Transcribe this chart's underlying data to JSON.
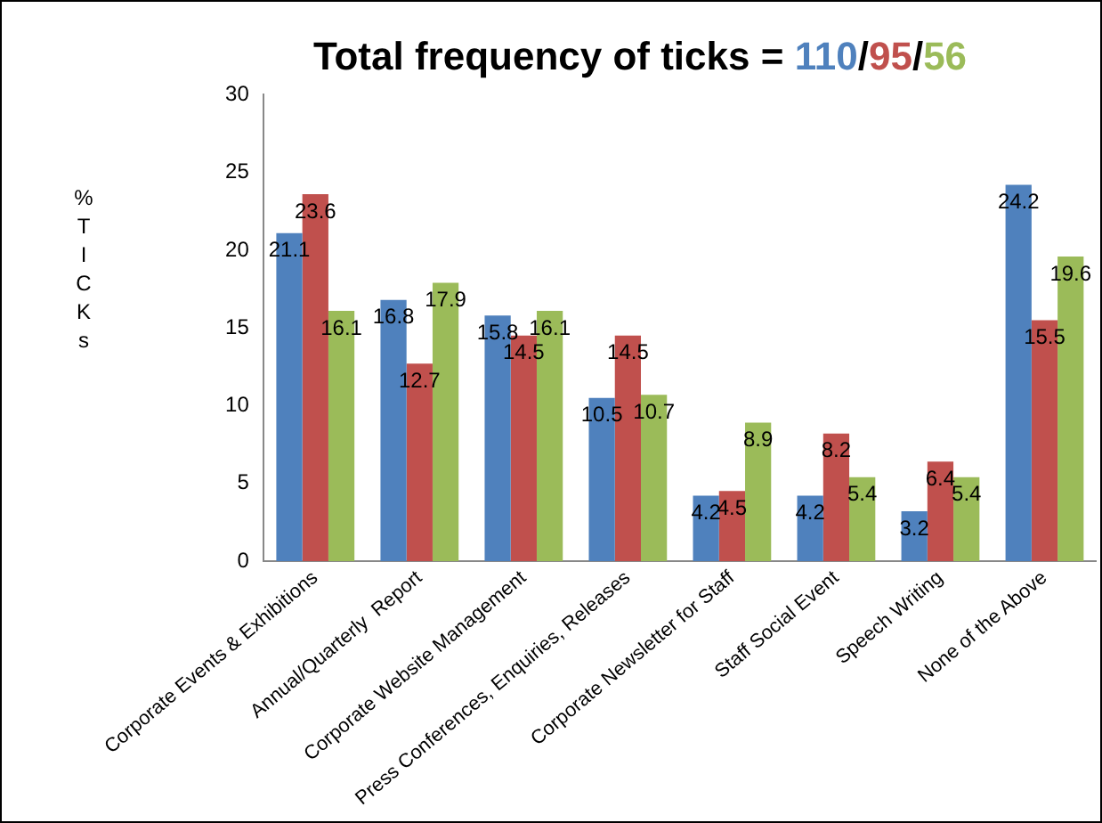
{
  "chart_data": {
    "type": "bar",
    "title": "Total frequency of ticks = 110/95/56",
    "ylabel": "%TICKs",
    "categories": [
      "Corporate Events & Exhibitions",
      "Annual/Quarterly  Report",
      "Corporate Website Management",
      "Press Conferences, Enquiries, Releases",
      "Corporate Newsletter for Staff",
      "Staff Social Event",
      "Speech Writing",
      "None of the Above"
    ],
    "series": [
      {
        "color": "#4f81bd",
        "values": [
          21.1,
          16.8,
          15.8,
          10.5,
          4.2,
          4.2,
          3.2,
          24.2
        ]
      },
      {
        "color": "#c0504d",
        "values": [
          23.6,
          12.7,
          14.5,
          14.5,
          4.5,
          8.2,
          6.4,
          15.5
        ]
      },
      {
        "color": "#9bbb59",
        "values": [
          16.1,
          17.9,
          16.1,
          10.7,
          8.9,
          5.4,
          5.4,
          19.6
        ]
      }
    ],
    "ylim": [
      0,
      30
    ],
    "yticks": [
      0,
      5,
      10,
      15,
      20,
      25,
      30
    ],
    "grid": false,
    "legend": false,
    "data_labels": true
  }
}
